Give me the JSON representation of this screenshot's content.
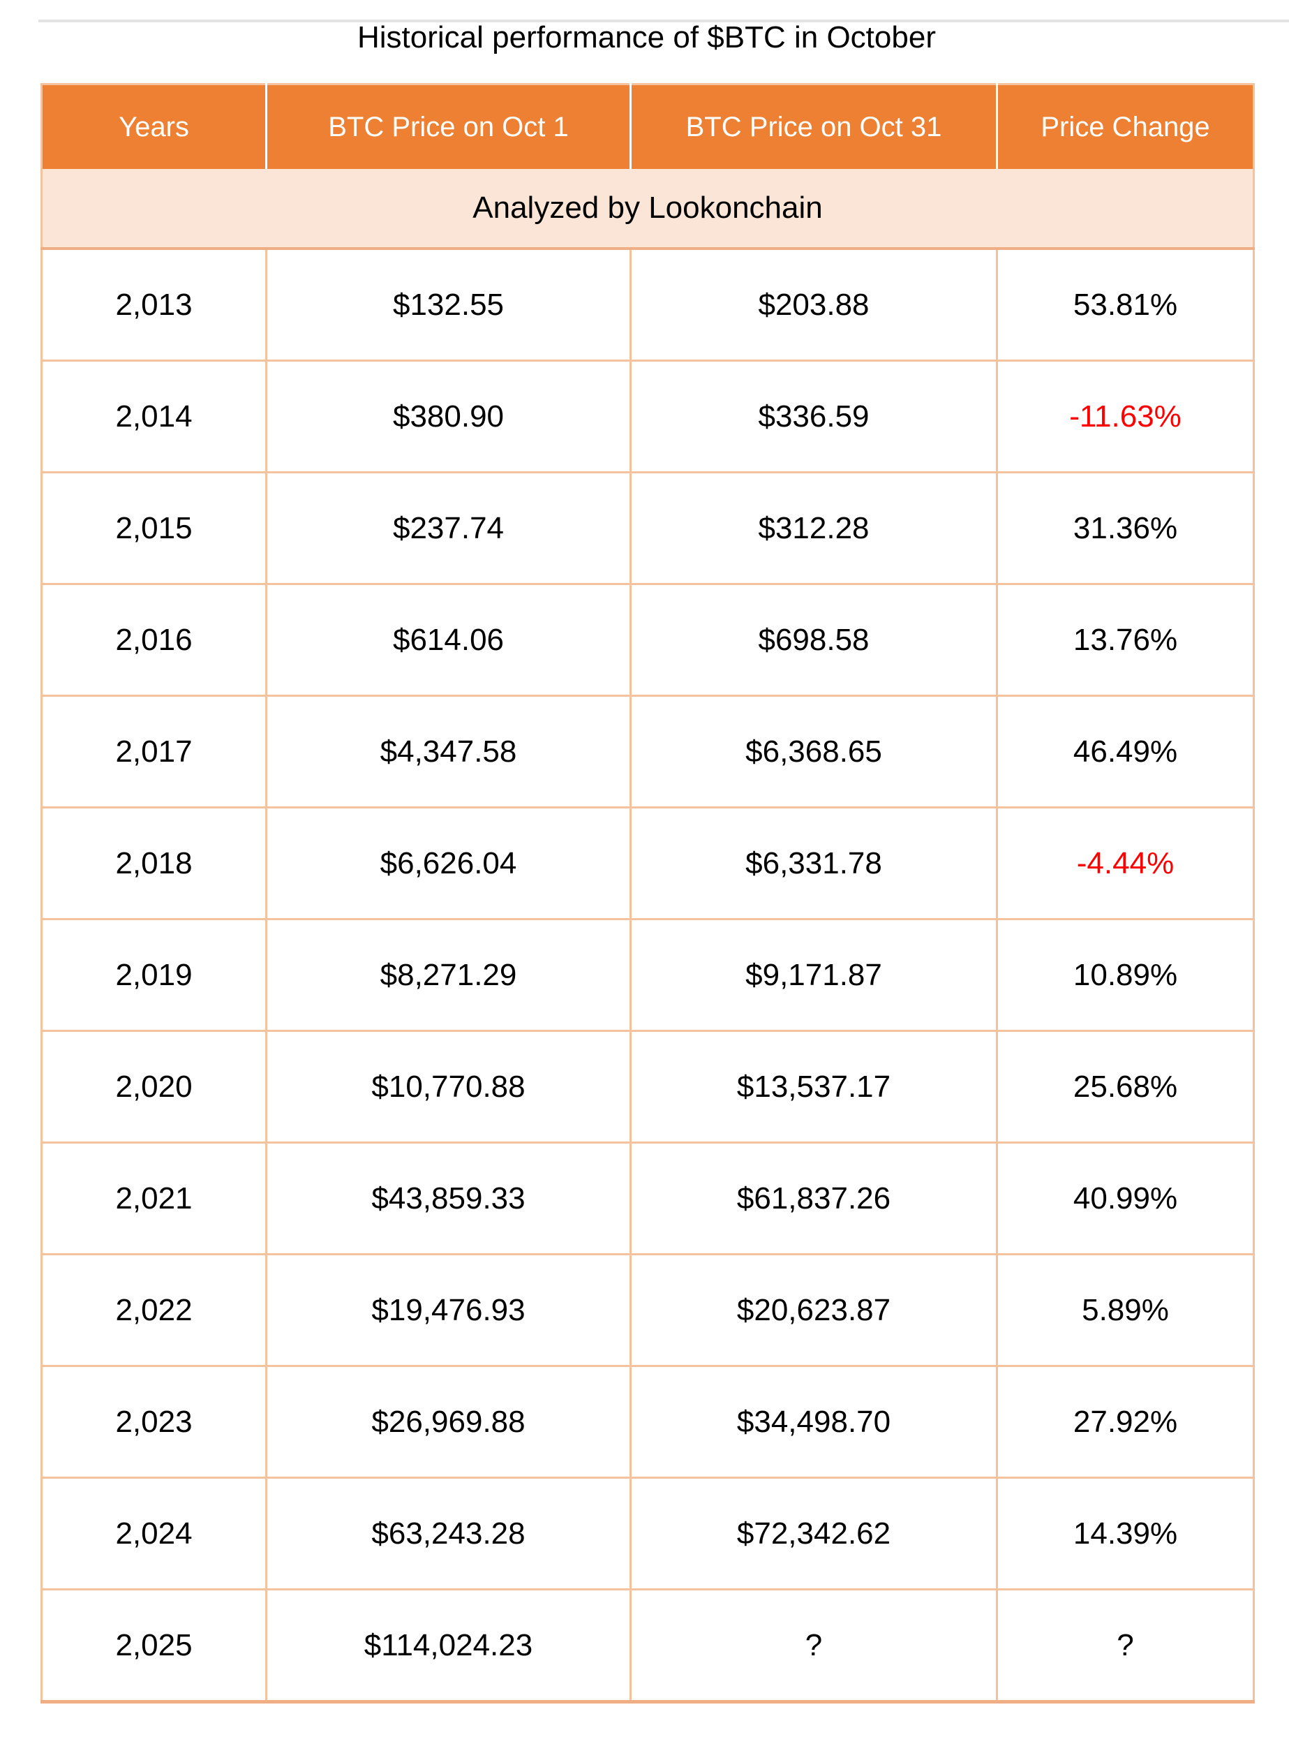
{
  "title": "Historical performance of $BTC in October",
  "chart_data": {
    "type": "table",
    "title": "Historical performance of $BTC in October",
    "subtitle": "Analyzed by Lookonchain",
    "columns": [
      "Years",
      "BTC Price on Oct 1",
      "BTC Price on Oct 31",
      "Price Change"
    ],
    "rows": [
      [
        "2,013",
        "$132.55",
        "$203.88",
        "53.81%"
      ],
      [
        "2,014",
        "$380.90",
        "$336.59",
        "-11.63%"
      ],
      [
        "2,015",
        "$237.74",
        "$312.28",
        "31.36%"
      ],
      [
        "2,016",
        "$614.06",
        "$698.58",
        "13.76%"
      ],
      [
        "2,017",
        "$4,347.58",
        "$6,368.65",
        "46.49%"
      ],
      [
        "2,018",
        "$6,626.04",
        "$6,331.78",
        "-4.44%"
      ],
      [
        "2,019",
        "$8,271.29",
        "$9,171.87",
        "10.89%"
      ],
      [
        "2,020",
        "$10,770.88",
        "$13,537.17",
        "25.68%"
      ],
      [
        "2,021",
        "$43,859.33",
        "$61,837.26",
        "40.99%"
      ],
      [
        "2,022",
        "$19,476.93",
        "$20,623.87",
        "5.89%"
      ],
      [
        "2,023",
        "$26,969.88",
        "$34,498.70",
        "27.92%"
      ],
      [
        "2,024",
        "$63,243.28",
        "$72,342.62",
        "14.39%"
      ],
      [
        "2,025",
        "$114,024.23",
        "?",
        "?"
      ]
    ],
    "negative_change_years": [
      "2,014",
      "2,018"
    ],
    "colors": {
      "header_background": "#ee8033",
      "header_text": "#ffffff",
      "subheader_background": "#fbe5d6",
      "grid_line": "#f4c29c",
      "thick_line": "#efae83",
      "negative_value": "#ff0000",
      "body_text": "#000000"
    },
    "layout": {
      "grid": "on",
      "subtitle_row_spans_all_columns": true
    }
  }
}
